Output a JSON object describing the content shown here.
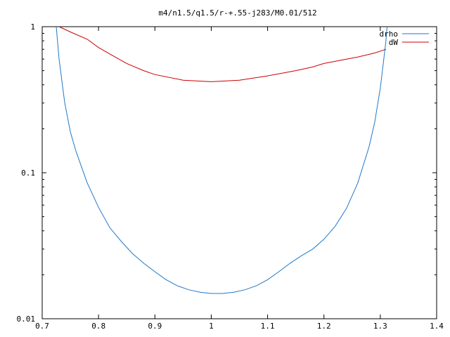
{
  "chart_data": {
    "type": "line",
    "title": "m4/n1.5/q1.5/r-+.55-j283/M0.01/512",
    "xlabel": "",
    "ylabel": "",
    "xlim": [
      0.7,
      1.4
    ],
    "ylim": [
      0.01,
      1
    ],
    "yscale": "log",
    "grid": false,
    "legend_position": "top-right",
    "x_ticks": [
      0.7,
      0.8,
      0.9,
      1,
      1.1,
      1.2,
      1.3,
      1.4
    ],
    "x_tick_labels": [
      "0.7",
      "0.8",
      "0.9",
      "1",
      "1.1",
      "1.2",
      "1.3",
      "1.4"
    ],
    "y_ticks": [
      0.01,
      0.1,
      1
    ],
    "y_tick_labels": [
      "0.01",
      "0.1",
      "1"
    ],
    "series": [
      {
        "name": "drho",
        "color": "#1f78c8",
        "x": [
          0.725,
          0.73,
          0.74,
          0.75,
          0.76,
          0.78,
          0.8,
          0.82,
          0.84,
          0.86,
          0.88,
          0.9,
          0.92,
          0.94,
          0.96,
          0.98,
          1.0,
          1.02,
          1.04,
          1.06,
          1.08,
          1.1,
          1.12,
          1.14,
          1.16,
          1.18,
          1.2,
          1.22,
          1.24,
          1.26,
          1.28,
          1.29,
          1.3,
          1.305,
          1.31,
          1.312
        ],
        "y": [
          1.0,
          0.6,
          0.3,
          0.19,
          0.14,
          0.085,
          0.058,
          0.042,
          0.034,
          0.028,
          0.024,
          0.021,
          0.0185,
          0.0168,
          0.0158,
          0.0152,
          0.0149,
          0.0149,
          0.0152,
          0.0158,
          0.0168,
          0.0185,
          0.021,
          0.024,
          0.027,
          0.03,
          0.035,
          0.043,
          0.057,
          0.085,
          0.15,
          0.22,
          0.38,
          0.55,
          0.8,
          1.0
        ]
      },
      {
        "name": "dW",
        "color": "#cc0000",
        "x": [
          0.73,
          0.75,
          0.78,
          0.8,
          0.82,
          0.85,
          0.88,
          0.9,
          0.95,
          1.0,
          1.05,
          1.1,
          1.15,
          1.18,
          1.2,
          1.23,
          1.26,
          1.29,
          1.31
        ],
        "y": [
          1.0,
          0.92,
          0.82,
          0.72,
          0.65,
          0.56,
          0.5,
          0.47,
          0.43,
          0.42,
          0.43,
          0.46,
          0.5,
          0.53,
          0.56,
          0.59,
          0.62,
          0.66,
          0.7
        ]
      }
    ]
  }
}
